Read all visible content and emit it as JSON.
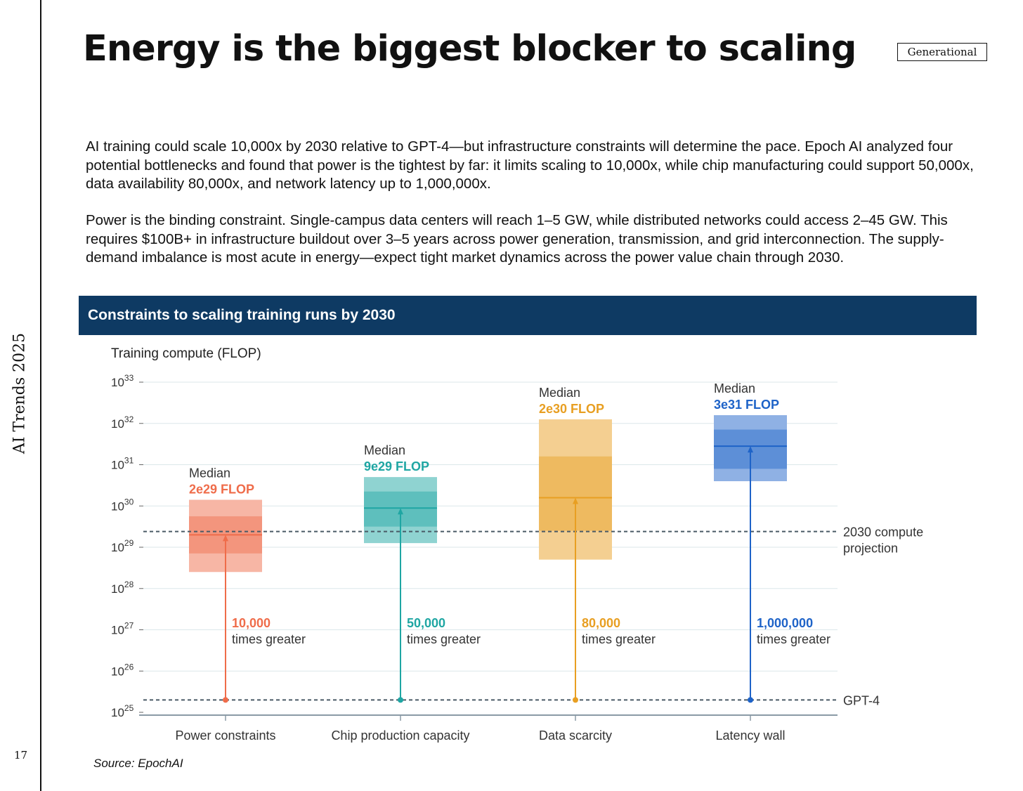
{
  "page": {
    "side_label": "AI Trends 2025",
    "page_number": "17",
    "brand": "Generational"
  },
  "title": "Energy is the biggest blocker to scaling",
  "paragraphs": [
    "AI training could scale 10,000x by 2030 relative to GPT-4—but infrastructure constraints will determine the pace. Epoch AI analyzed four potential bottlenecks and found that power is the tightest by far: it limits scaling to 10,000x, while chip manufacturing could support 50,000x, data availability 80,000x, and network latency up to 1,000,000x.",
    "Power is the binding constraint. Single-campus data centers will reach 1–5 GW, while distributed networks could access 2–45 GW. This requires $100B+ in infrastructure buildout over 3–5 years across power generation, transmission, and grid interconnection. The supply-demand imbalance is most acute in energy—expect tight market dynamics across the power value chain through 2030."
  ],
  "banner": "Constraints to scaling training runs by 2030",
  "source": "Source: EpochAI",
  "chart_data": {
    "type": "box",
    "title": "Constraints to scaling training runs by 2030",
    "ylabel": "Training compute (FLOP)",
    "yscale": "log10",
    "ylim_exp": [
      25,
      33
    ],
    "ytick_exps": [
      25,
      26,
      27,
      28,
      29,
      30,
      31,
      32,
      33
    ],
    "categories": [
      "Power constraints",
      "Chip production capacity",
      "Data scarcity",
      "Latency wall"
    ],
    "reference_lines": [
      {
        "label": "2030 compute\nprojection",
        "value_exp": 29.38
      },
      {
        "label": "GPT-4",
        "value_exp": 25.3
      }
    ],
    "series": [
      {
        "color": "#ef6c4a",
        "outer_exp": [
          28.4,
          30.15
        ],
        "inner_exp": [
          28.85,
          29.75
        ],
        "median_exp": 29.3,
        "median_heading": "Median",
        "median_label": "2e29 FLOP",
        "multiplier": "10,000",
        "multiplier_text": "times greater"
      },
      {
        "color": "#1fa6a3",
        "outer_exp": [
          29.1,
          30.7
        ],
        "inner_exp": [
          29.5,
          30.35
        ],
        "median_exp": 29.95,
        "median_heading": "Median",
        "median_label": "9e29 FLOP",
        "multiplier": "50,000",
        "multiplier_text": "times greater"
      },
      {
        "color": "#e89f22",
        "outer_exp": [
          28.7,
          32.1
        ],
        "inner_exp": [
          29.4,
          31.2
        ],
        "median_exp": 30.2,
        "median_heading": "Median",
        "median_label": "2e30 FLOP",
        "multiplier": "80,000",
        "multiplier_text": "times greater"
      },
      {
        "color": "#1e63c8",
        "outer_exp": [
          30.6,
          32.2
        ],
        "inner_exp": [
          30.9,
          31.85
        ],
        "median_exp": 31.45,
        "median_heading": "Median",
        "median_label": "3e31 FLOP",
        "multiplier": "1,000,000",
        "multiplier_text": "times greater"
      }
    ]
  }
}
